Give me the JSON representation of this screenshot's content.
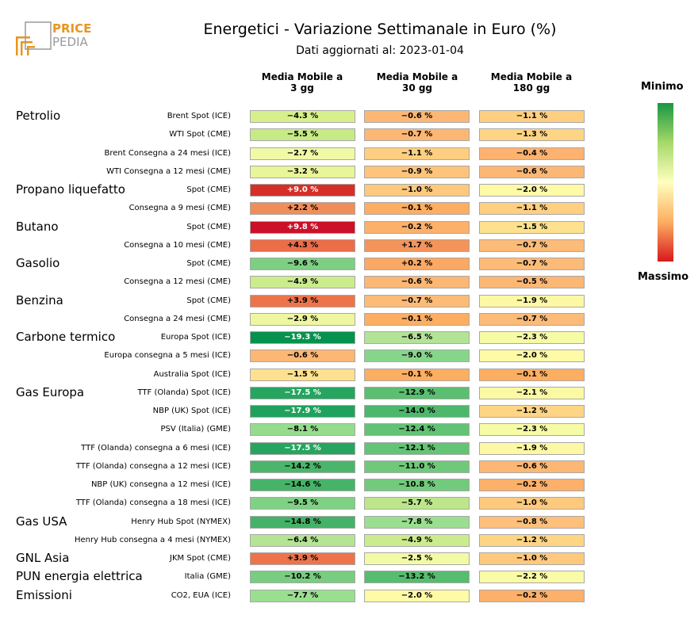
{
  "logo": {
    "line1": "PRICE",
    "line2": "PEDIA"
  },
  "title": "Energetici - Variazione Settimanale in Euro (%)",
  "subtitle": "Dati aggiornati al: 2023-01-04",
  "columns": [
    "Media Mobile a\n3 gg",
    "Media Mobile a\n30 gg",
    "Media Mobile a\n180 gg"
  ],
  "legend": {
    "top": "Minimo",
    "bottom": "Massimo",
    "colors": [
      "#1a9641",
      "#a6d96a",
      "#ffffbf",
      "#fdae61",
      "#d7191c"
    ]
  },
  "chart_data": {
    "type": "heatmap",
    "title": "Energetici - Variazione Settimanale in Euro (%)",
    "columns": [
      "Media Mobile a 3 gg",
      "Media Mobile a 30 gg",
      "Media Mobile a 180 gg"
    ],
    "groups": [
      {
        "name": "Petrolio",
        "rows": [
          {
            "label": "Brent Spot (ICE)",
            "values": [
              "−4.3 %",
              "−0.6 %",
              "−1.1 %"
            ],
            "colors": [
              "#d7f08b",
              "#fdb774",
              "#fecf80"
            ]
          },
          {
            "label": "WTI Spot (CME)",
            "values": [
              "−5.5 %",
              "−0.7 %",
              "−1.3 %"
            ],
            "colors": [
              "#c6ea86",
              "#fdb774",
              "#fed585"
            ]
          },
          {
            "label": "Brent Consegna a 24 mesi (ICE)",
            "values": [
              "−2.7 %",
              "−1.1 %",
              "−0.4 %"
            ],
            "colors": [
              "#f1f9a6",
              "#fecf80",
              "#fdb270"
            ]
          },
          {
            "label": "WTI Consegna a 12 mesi (CME)",
            "values": [
              "−3.2 %",
              "−0.9 %",
              "−0.6 %"
            ],
            "colors": [
              "#e8f598",
              "#fec47b",
              "#fdb774"
            ]
          }
        ]
      },
      {
        "name": "Propano liquefatto",
        "rows": [
          {
            "label": "Spot (CME)",
            "values": [
              "+9.0 %",
              "−1.0 %",
              "−2.0 %"
            ],
            "colors": [
              "#d62f27",
              "#fec97d",
              "#fffaa6"
            ],
            "dark": [
              true,
              false,
              false
            ]
          },
          {
            "label": "Consegna a 9 mesi (CME)",
            "values": [
              "+2.2 %",
              "−0.1 %",
              "−1.1 %"
            ],
            "colors": [
              "#f08e59",
              "#fdae61",
              "#fecf80"
            ]
          }
        ]
      },
      {
        "name": "Butano",
        "rows": [
          {
            "label": "Spot (CME)",
            "values": [
              "+9.8 %",
              "−0.2 %",
              "−1.5 %"
            ],
            "colors": [
              "#cc1027",
              "#fdb06a",
              "#fee18f"
            ],
            "dark": [
              true,
              false,
              false
            ]
          },
          {
            "label": "Consegna a 10 mesi (CME)",
            "values": [
              "+4.3 %",
              "+1.7 %",
              "−0.7 %"
            ],
            "colors": [
              "#ec6d48",
              "#f4945b",
              "#fdbb78"
            ]
          }
        ]
      },
      {
        "name": "Gasolio",
        "rows": [
          {
            "label": "Spot (CME)",
            "values": [
              "−9.6 %",
              "+0.2 %",
              "−0.7 %"
            ],
            "colors": [
              "#7dd083",
              "#fba864",
              "#fdbb78"
            ]
          },
          {
            "label": "Consegna a 12 mesi (CME)",
            "values": [
              "−4.9 %",
              "−0.6 %",
              "−0.5 %"
            ],
            "colors": [
              "#cbec8c",
              "#fdb774",
              "#fdb774"
            ]
          }
        ]
      },
      {
        "name": "Benzina",
        "rows": [
          {
            "label": "Spot (CME)",
            "values": [
              "+3.9 %",
              "−0.7 %",
              "−1.9 %"
            ],
            "colors": [
              "#ed744a",
              "#fdbb78",
              "#fdf8a4"
            ]
          },
          {
            "label": "Consegna a 24 mesi (CME)",
            "values": [
              "−2.9 %",
              "−0.1 %",
              "−0.7 %"
            ],
            "colors": [
              "#eef79f",
              "#fdae61",
              "#fdbb78"
            ]
          }
        ]
      },
      {
        "name": "Carbone termico",
        "rows": [
          {
            "label": "Europa Spot (ICE)",
            "values": [
              "−19.3 %",
              "−6.5 %",
              "−2.3 %"
            ],
            "colors": [
              "#05924e",
              "#b3e396",
              "#f6fba6"
            ],
            "dark": [
              true,
              false,
              false
            ]
          },
          {
            "label": "Europa consegna a 5 mesi (ICE)",
            "values": [
              "−0.6 %",
              "−9.0 %",
              "−2.0 %"
            ],
            "colors": [
              "#fdb774",
              "#86d58b",
              "#fffaa6"
            ]
          },
          {
            "label": "Australia Spot (ICE)",
            "values": [
              "−1.5 %",
              "−0.1 %",
              "−0.1 %"
            ],
            "colors": [
              "#fee18f",
              "#fdae61",
              "#fdae61"
            ]
          }
        ]
      },
      {
        "name": "Gas Europa",
        "rows": [
          {
            "label": "TTF (Olanda) Spot (ICE)",
            "values": [
              "−17.5 %",
              "−12.9 %",
              "−2.1 %"
            ],
            "colors": [
              "#25a55f",
              "#5bbf71",
              "#fcf9a5"
            ],
            "dark": [
              true,
              false,
              false
            ]
          },
          {
            "label": "NBP (UK) Spot (ICE)",
            "values": [
              "−17.9 %",
              "−14.0 %",
              "−1.2 %"
            ],
            "colors": [
              "#1ea25c",
              "#4db76c",
              "#fed585"
            ],
            "dark": [
              true,
              false,
              false
            ]
          },
          {
            "label": "PSV (Italia) (GME)",
            "values": [
              "−8.1 %",
              "−12.4 %",
              "−2.3 %"
            ],
            "colors": [
              "#96dc8d",
              "#62c374",
              "#f6fba6"
            ]
          },
          {
            "label": "TTF (Olanda) consegna a 6 mesi (ICE)",
            "values": [
              "−17.5 %",
              "−12.1 %",
              "−1.9 %"
            ],
            "colors": [
              "#25a55f",
              "#64c475",
              "#fdf8a4"
            ],
            "dark": [
              true,
              false,
              false
            ]
          },
          {
            "label": "TTF (Olanda) consegna a 12 mesi (ICE)",
            "values": [
              "−14.2 %",
              "−11.0 %",
              "−0.6 %"
            ],
            "colors": [
              "#4bb66b",
              "#70c97b",
              "#fdb774"
            ]
          },
          {
            "label": "NBP (UK) consegna a 12 mesi (ICE)",
            "values": [
              "−14.6 %",
              "−10.8 %",
              "−0.2 %"
            ],
            "colors": [
              "#46b369",
              "#72ca7c",
              "#fdb06a"
            ]
          },
          {
            "label": "TTF (Olanda) consegna a 18 mesi (ICE)",
            "values": [
              "−9.5 %",
              "−5.7 %",
              "−1.0 %"
            ],
            "colors": [
              "#7fd184",
              "#bde68b",
              "#fec97d"
            ]
          }
        ]
      },
      {
        "name": "Gas USA",
        "rows": [
          {
            "label": "Henry Hub Spot (NYMEX)",
            "values": [
              "−14.8 %",
              "−7.8 %",
              "−0.8 %"
            ],
            "colors": [
              "#44b268",
              "#9adf90",
              "#fec07a"
            ]
          },
          {
            "label": "Henry Hub consegna a 4 mesi (NYMEX)",
            "values": [
              "−6.4 %",
              "−4.9 %",
              "−1.2 %"
            ],
            "colors": [
              "#b5e495",
              "#cbec8c",
              "#fed585"
            ]
          }
        ]
      },
      {
        "name": "GNL Asia",
        "rows": [
          {
            "label": "JKM Spot (CME)",
            "values": [
              "+3.9 %",
              "−2.5 %",
              "−1.0 %"
            ],
            "colors": [
              "#ed744a",
              "#f3faa6",
              "#fec97d"
            ]
          }
        ]
      },
      {
        "name": "PUN energia elettrica",
        "rows": [
          {
            "label": "Italia (GME)",
            "values": [
              "−10.2 %",
              "−13.2 %",
              "−2.2 %"
            ],
            "colors": [
              "#78cd80",
              "#56bc6f",
              "#f9fba6"
            ]
          }
        ]
      },
      {
        "name": "Emissioni",
        "rows": [
          {
            "label": "CO2, EUA (ICE)",
            "values": [
              "−7.7 %",
              "−2.0 %",
              "−0.2 %"
            ],
            "colors": [
              "#9ade90",
              "#fffaa6",
              "#fdb06a"
            ]
          }
        ]
      }
    ]
  }
}
